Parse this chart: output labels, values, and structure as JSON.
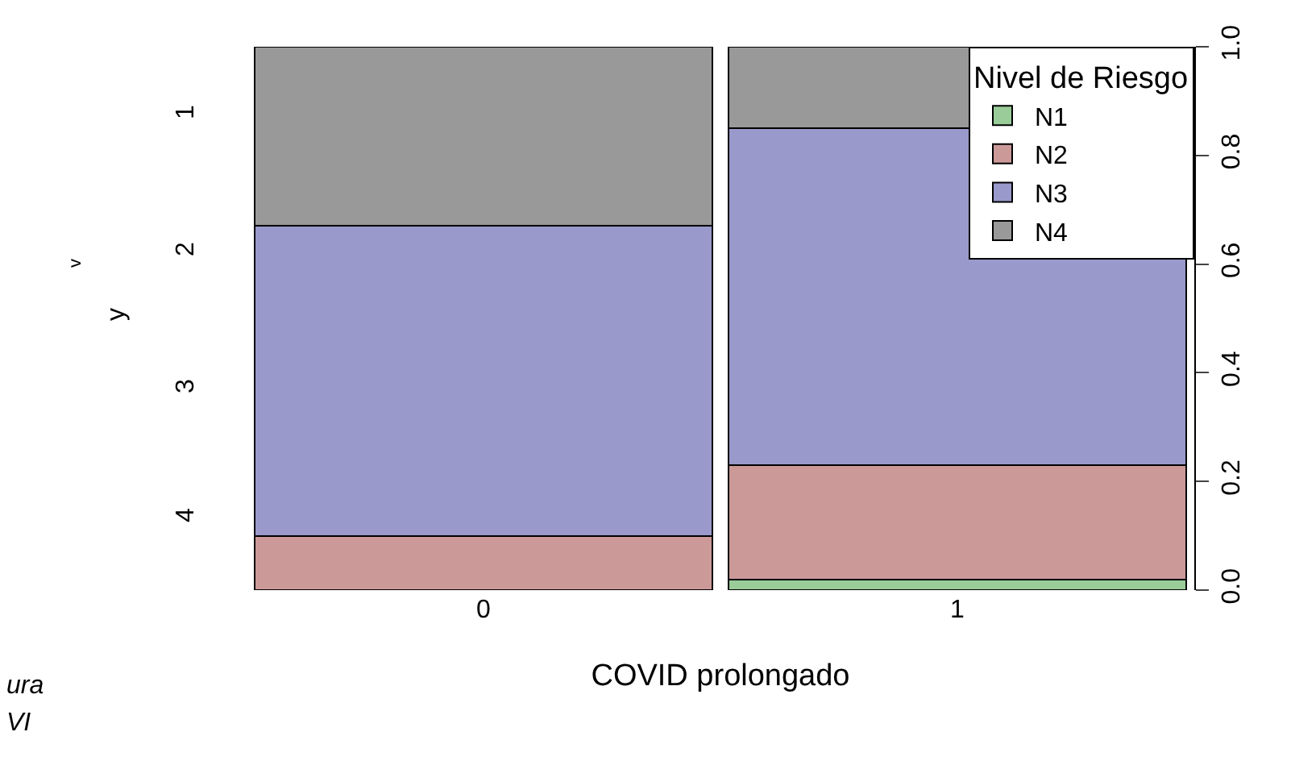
{
  "chart_data": {
    "type": "bar",
    "stacked": true,
    "xlabel": "COVID prolongado",
    "legend_title": "Nivel de Riesgo",
    "legend": "top right",
    "categories": [
      "0",
      "1"
    ],
    "series": [
      {
        "name": "N1",
        "color": "#99cc99",
        "values": [
          0,
          0.02
        ]
      },
      {
        "name": "N2",
        "color": "#cc9999",
        "values": [
          0.1,
          0.21
        ]
      },
      {
        "name": "N3",
        "color": "#9999cc",
        "values": [
          0.57,
          0.62
        ]
      },
      {
        "name": "N4",
        "color": "#999999",
        "values": [
          0.33,
          0.15
        ]
      }
    ],
    "ylim": [
      0,
      1
    ],
    "yticks": [
      {
        "value": 0,
        "label": "0.0"
      },
      {
        "value": 0.2,
        "label": "0.2"
      },
      {
        "value": 0.4,
        "label": "0.4"
      },
      {
        "value": 0.6,
        "label": "0.6"
      },
      {
        "value": 0.8,
        "label": "0.8"
      },
      {
        "value": 1,
        "label": "1.0"
      }
    ],
    "annotations": [
      "v",
      "y",
      "1",
      "2",
      "3",
      "4",
      "ura",
      "VI"
    ]
  }
}
